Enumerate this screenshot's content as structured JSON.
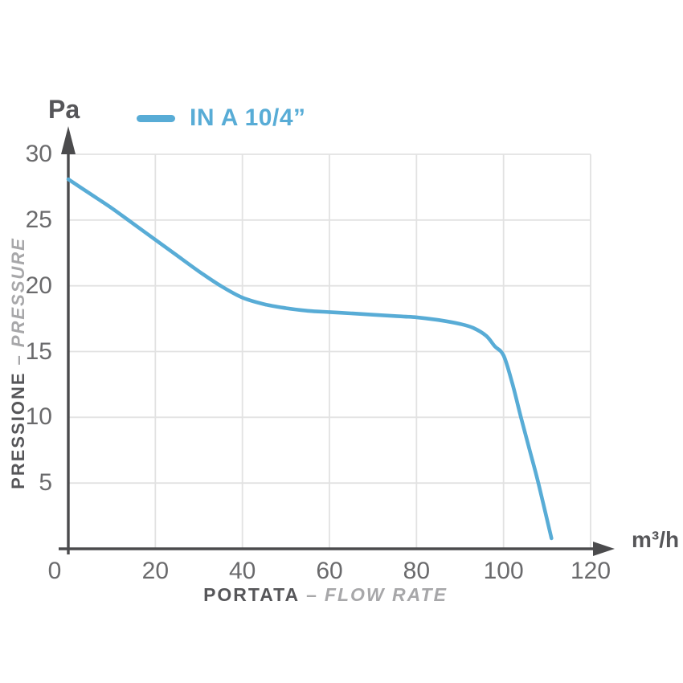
{
  "chart": {
    "y_unit": "Pa",
    "x_unit": "m³/h",
    "legend": {
      "label": "IN A 10/4”"
    },
    "x_axis": {
      "title_primary": "PORTATA",
      "separator": "–",
      "title_secondary": "FLOW RATE"
    },
    "y_axis": {
      "title_primary": "PRESSIONE",
      "separator": "–",
      "title_secondary": "PRESSURE"
    }
  },
  "colors": {
    "line": "#58acd6",
    "axis": "#4b4b4d",
    "grid": "#e2e2e2",
    "tick_text": "#6a6a6c",
    "title_primary": "#565659",
    "title_secondary": "#a7a7a9"
  },
  "chart_data": {
    "type": "line",
    "title": "",
    "xlabel": "PORTATA – FLOW RATE",
    "ylabel": "PRESSIONE – PRESSURE",
    "x_unit": "m³/h",
    "y_unit": "Pa",
    "xlim": [
      0,
      120
    ],
    "ylim": [
      0,
      30
    ],
    "x_ticks": [
      0,
      20,
      40,
      60,
      80,
      100,
      120
    ],
    "y_ticks": [
      30,
      25,
      20,
      15,
      10,
      5
    ],
    "grid": true,
    "legend_position": "top-left",
    "series": [
      {
        "name": "IN A 10/4”",
        "color": "#58acd6",
        "x": [
          0,
          5,
          10,
          15,
          20,
          25,
          30,
          35,
          40,
          45,
          50,
          55,
          60,
          65,
          70,
          75,
          80,
          85,
          90,
          93,
          96,
          98,
          100,
          102,
          104,
          106,
          108,
          111
        ],
        "y": [
          28.1,
          27.0,
          25.9,
          24.7,
          23.5,
          22.3,
          21.1,
          20.0,
          19.1,
          18.6,
          18.3,
          18.1,
          18.0,
          17.9,
          17.8,
          17.7,
          17.6,
          17.4,
          17.1,
          16.8,
          16.2,
          15.4,
          14.7,
          12.6,
          10.0,
          7.5,
          5.0,
          0.8
        ]
      }
    ]
  }
}
